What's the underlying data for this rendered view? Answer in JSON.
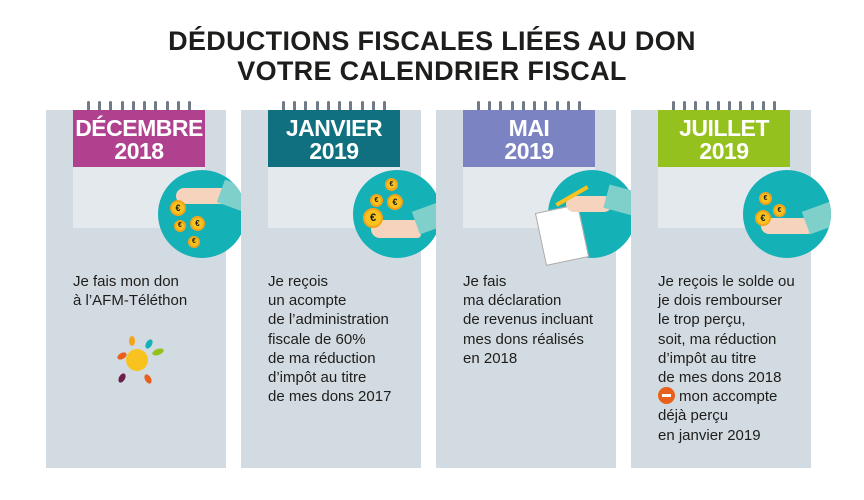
{
  "title": {
    "line1": "DÉDUCTIONS FISCALES LIÉES AU DON",
    "line2": "VOTRE CALENDRIER FISCAL"
  },
  "panels": [
    {
      "month": "DÉCEMBRE",
      "year": "2018",
      "color": "#b0418f",
      "icon": "hand-giving-coins-icon",
      "lines": [
        "Je fais mon don",
        "à l’AFM-Téléthon"
      ]
    },
    {
      "month": "JANVIER",
      "year": "2019",
      "color": "#10707f",
      "icon": "hand-receiving-coins-icon",
      "lines": [
        "Je reçois",
        "un acompte",
        "de l’administration",
        "fiscale de 60%",
        "de ma réduction",
        "d’impôt au titre",
        "de mes dons 2017"
      ]
    },
    {
      "month": "MAI",
      "year": "2019",
      "color": "#7b83c3",
      "icon": "hand-writing-declaration-icon",
      "lines": [
        "Je fais",
        "ma déclaration",
        "de revenus incluant",
        "mes dons réalisés",
        "en 2018"
      ]
    },
    {
      "month": "JUILLET",
      "year": "2019",
      "color": "#95c11f",
      "icon": "hand-receiving-coins-icon",
      "lines": [
        "Je reçois le solde ou",
        "je dois rembourser",
        "le trop perçu,",
        "soit, ma réduction",
        "d’impôt au titre",
        "de mes dons 2018"
      ],
      "minus_line": "mon accompte",
      "tail": [
        "déjà perçu",
        "en janvier 2019"
      ]
    }
  ],
  "coin_symbol": "€"
}
